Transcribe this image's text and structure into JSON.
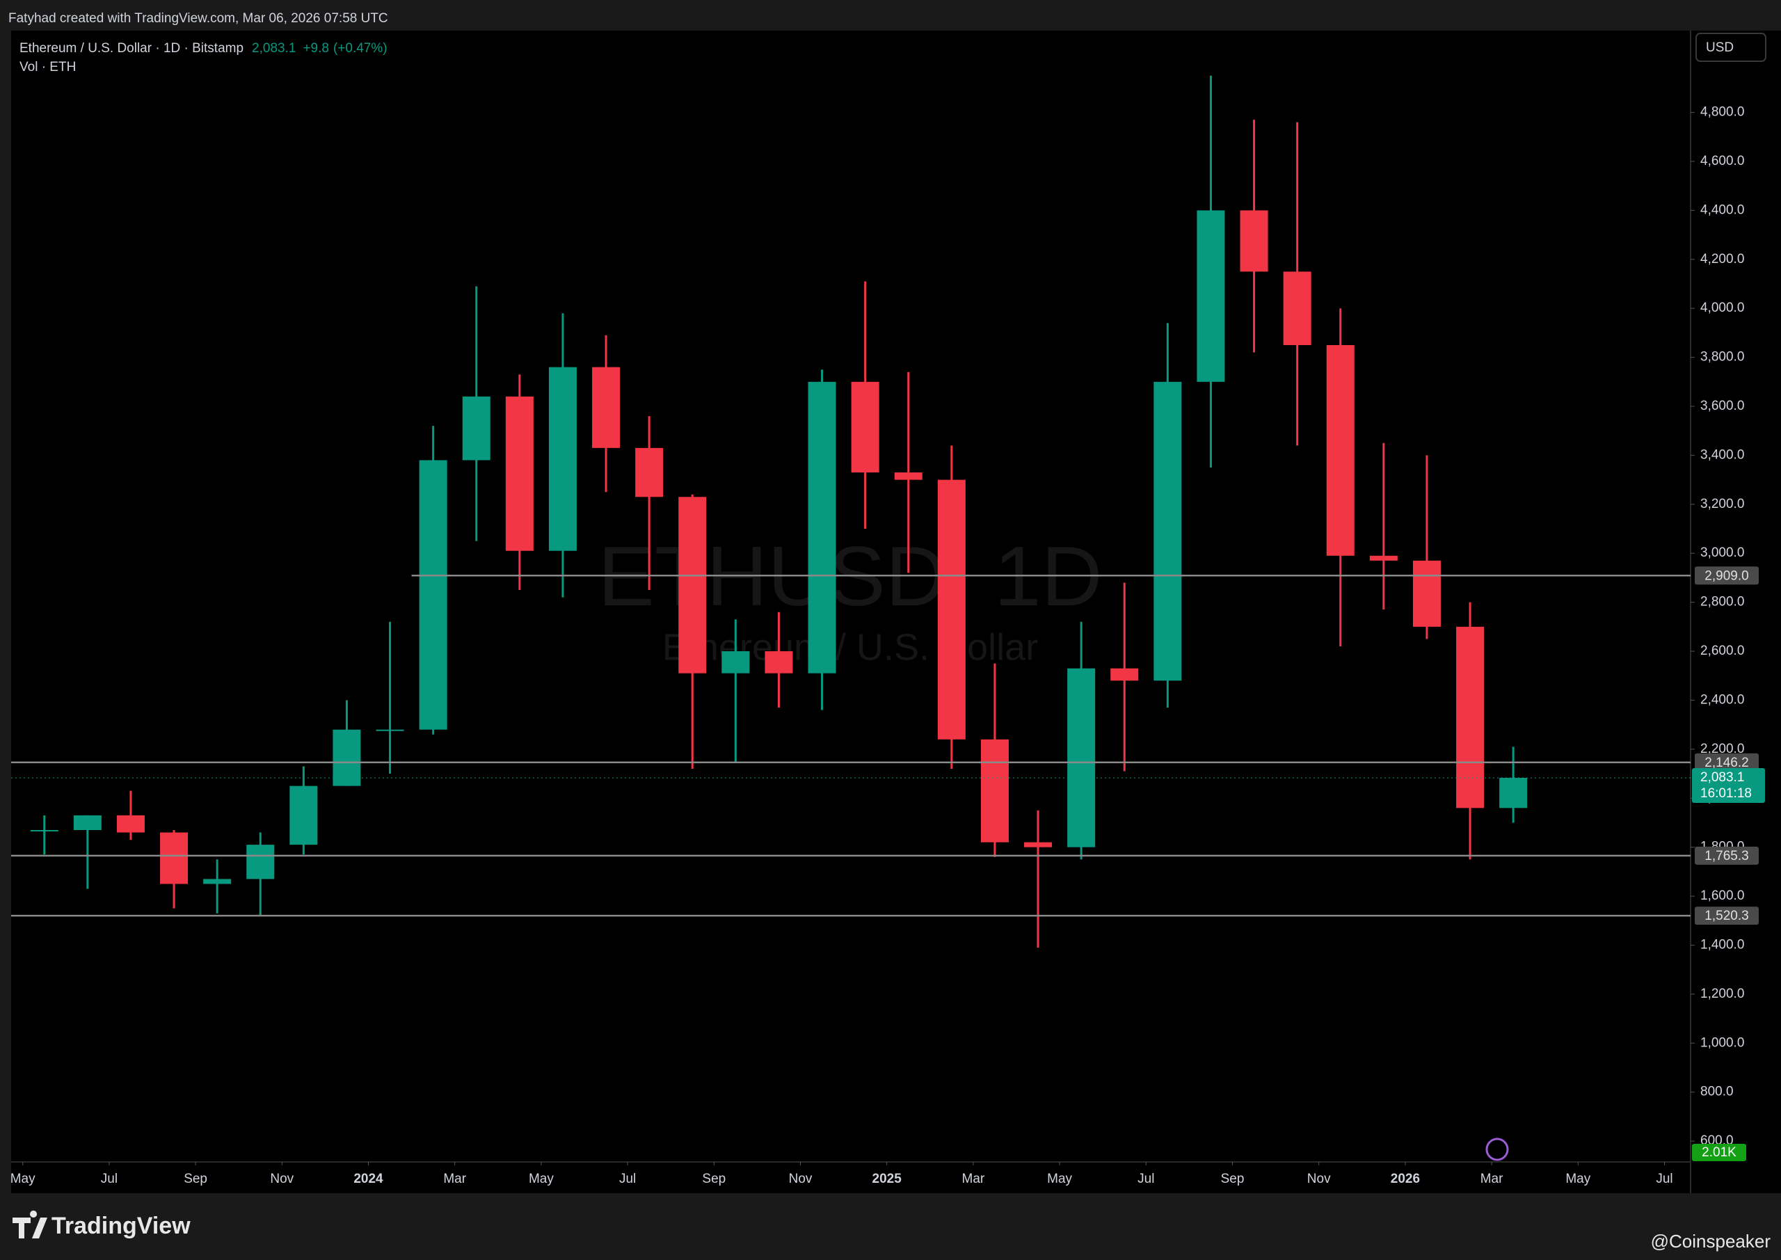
{
  "header": {
    "credit": "Fatyhad created with TradingView.com, Mar 06, 2026 07:58 UTC"
  },
  "footer": {
    "logo": "TradingView",
    "source": "@Coinspeaker"
  },
  "chart_data": {
    "type": "candlestick",
    "title": "Ethereum / U.S. Dollar · 1D · Bitstamp",
    "last_price": 2083.1,
    "last_price_label": "2,083.1",
    "change": "+9.8",
    "change_percent": "(+0.47%)",
    "volume_title": "Vol · ETH",
    "volume_label": "2.01K",
    "countdown": "16:01:18",
    "currency": "USD",
    "watermark": "ETHUSD, 1D",
    "watermark_subtitle": "Ethereum / U.S. Dollar",
    "up_color": "#089981",
    "down_color": "#f23645",
    "x": [
      "2023-05",
      "2023-06",
      "2023-07",
      "2023-08",
      "2023-09",
      "2023-10",
      "2023-11",
      "2023-12",
      "2024-01",
      "2024-02",
      "2024-03",
      "2024-04",
      "2024-05",
      "2024-06",
      "2024-07",
      "2024-08",
      "2024-09",
      "2024-10",
      "2024-11",
      "2024-12",
      "2025-01",
      "2025-02",
      "2025-03",
      "2025-04",
      "2025-05",
      "2025-06",
      "2025-07",
      "2025-08",
      "2025-09",
      "2025-10",
      "2025-11",
      "2025-12",
      "2026-01",
      "2026-02",
      "2026-03"
    ],
    "open": [
      1870,
      1870,
      1930,
      1860,
      1650,
      1670,
      1810,
      2050,
      2280,
      2280,
      3380,
      3640,
      3010,
      3760,
      3430,
      3230,
      2510,
      2600,
      2510,
      3700,
      3330,
      3300,
      2240,
      1820,
      1800,
      2530,
      2480,
      3700,
      4400,
      4150,
      3850,
      2990,
      2970,
      2700,
      1960
    ],
    "high": [
      1930,
      1930,
      2030,
      1870,
      1750,
      1860,
      2130,
      2400,
      2720,
      3520,
      4090,
      3730,
      3980,
      3890,
      3560,
      3240,
      2730,
      2760,
      3750,
      4110,
      3740,
      3440,
      2550,
      1950,
      2720,
      2880,
      3940,
      4950,
      4770,
      4760,
      4000,
      3450,
      3400,
      2800,
      2210
    ],
    "low": [
      1770,
      1630,
      1830,
      1550,
      1530,
      1520,
      1770,
      2050,
      2100,
      2260,
      3050,
      2850,
      2820,
      3250,
      2850,
      2120,
      2150,
      2370,
      2360,
      3100,
      2920,
      2120,
      1760,
      1390,
      1750,
      2110,
      2370,
      3350,
      3820,
      3440,
      2620,
      2770,
      2650,
      1750,
      1900
    ],
    "close": [
      1870,
      1930,
      1860,
      1650,
      1670,
      1810,
      2050,
      2280,
      2280,
      3380,
      3640,
      3010,
      3760,
      3430,
      3230,
      2510,
      2600,
      2510,
      3700,
      3330,
      3300,
      2240,
      1820,
      1800,
      2530,
      2480,
      3700,
      4400,
      4150,
      3850,
      2990,
      2970,
      2700,
      1960,
      2083.1
    ],
    "xticks": [
      {
        "value": "2023-05",
        "label": "May"
      },
      {
        "value": "2023-07",
        "label": "Jul"
      },
      {
        "value": "2023-09",
        "label": "Sep"
      },
      {
        "value": "2023-11",
        "label": "Nov"
      },
      {
        "value": "2024-01",
        "label": "2024"
      },
      {
        "value": "2024-03",
        "label": "Mar"
      },
      {
        "value": "2024-05",
        "label": "May"
      },
      {
        "value": "2024-07",
        "label": "Jul"
      },
      {
        "value": "2024-09",
        "label": "Sep"
      },
      {
        "value": "2024-11",
        "label": "Nov"
      },
      {
        "value": "2025-01",
        "label": "2025"
      },
      {
        "value": "2025-03",
        "label": "Mar"
      },
      {
        "value": "2025-05",
        "label": "May"
      },
      {
        "value": "2025-07",
        "label": "Jul"
      },
      {
        "value": "2025-09",
        "label": "Sep"
      },
      {
        "value": "2025-11",
        "label": "Nov"
      },
      {
        "value": "2026-01",
        "label": "2026"
      },
      {
        "value": "2026-03",
        "label": "Mar"
      },
      {
        "value": "2026-05",
        "label": "May"
      },
      {
        "value": "2026-07",
        "label": "Jul"
      }
    ],
    "ylim": [
      515,
      5134
    ],
    "yticks": [
      {
        "value": 600,
        "label": "600.0"
      },
      {
        "value": 800,
        "label": "800.0"
      },
      {
        "value": 1000,
        "label": "1,000.0"
      },
      {
        "value": 1200,
        "label": "1,200.0"
      },
      {
        "value": 1400,
        "label": "1,400.0"
      },
      {
        "value": 1600,
        "label": "1,600.0"
      },
      {
        "value": 1800,
        "label": "1,800.0"
      },
      {
        "value": 2000,
        "label": "2,000.0"
      },
      {
        "value": 2200,
        "label": "2,200.0"
      },
      {
        "value": 2400,
        "label": "2,400.0"
      },
      {
        "value": 2600,
        "label": "2,600.0"
      },
      {
        "value": 2800,
        "label": "2,800.0"
      },
      {
        "value": 3000,
        "label": "3,000.0"
      },
      {
        "value": 3200,
        "label": "3,200.0"
      },
      {
        "value": 3400,
        "label": "3,400.0"
      },
      {
        "value": 3600,
        "label": "3,600.0"
      },
      {
        "value": 3800,
        "label": "3,800.0"
      },
      {
        "value": 4000,
        "label": "4,000.0"
      },
      {
        "value": 4200,
        "label": "4,200.0"
      },
      {
        "value": 4400,
        "label": "4,400.0"
      },
      {
        "value": 4600,
        "label": "4,600.0"
      },
      {
        "value": 4800,
        "label": "4,800.0"
      }
    ],
    "levels": [
      {
        "value": 2909.0,
        "label": "2,909.0",
        "start": "2024-02"
      },
      {
        "value": 2146.2,
        "label": "2,146.2"
      },
      {
        "value": 1765.3,
        "label": "1,765.3"
      },
      {
        "value": 1520.3,
        "label": "1,520.3"
      }
    ]
  }
}
